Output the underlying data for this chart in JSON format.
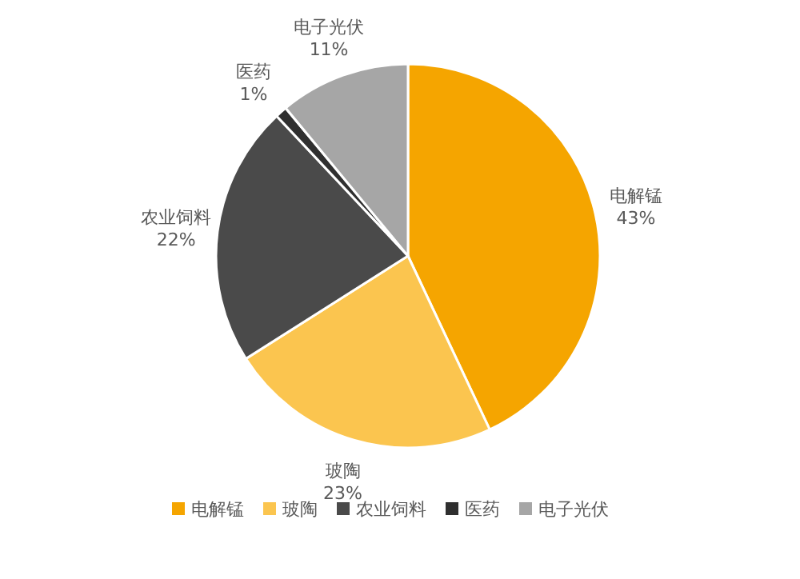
{
  "chart_data": {
    "type": "pie",
    "categories": [
      "电解锰",
      "玻陶",
      "农业饲料",
      "医药",
      "电子光伏"
    ],
    "values": [
      43,
      23,
      22,
      1,
      11
    ],
    "value_labels": [
      "43%",
      "23%",
      "22%",
      "1%",
      "11%"
    ],
    "colors": [
      "#f5a500",
      "#fbc54f",
      "#4a4a4a",
      "#2f2f2f",
      "#a6a6a6"
    ],
    "legend": "bottom"
  }
}
